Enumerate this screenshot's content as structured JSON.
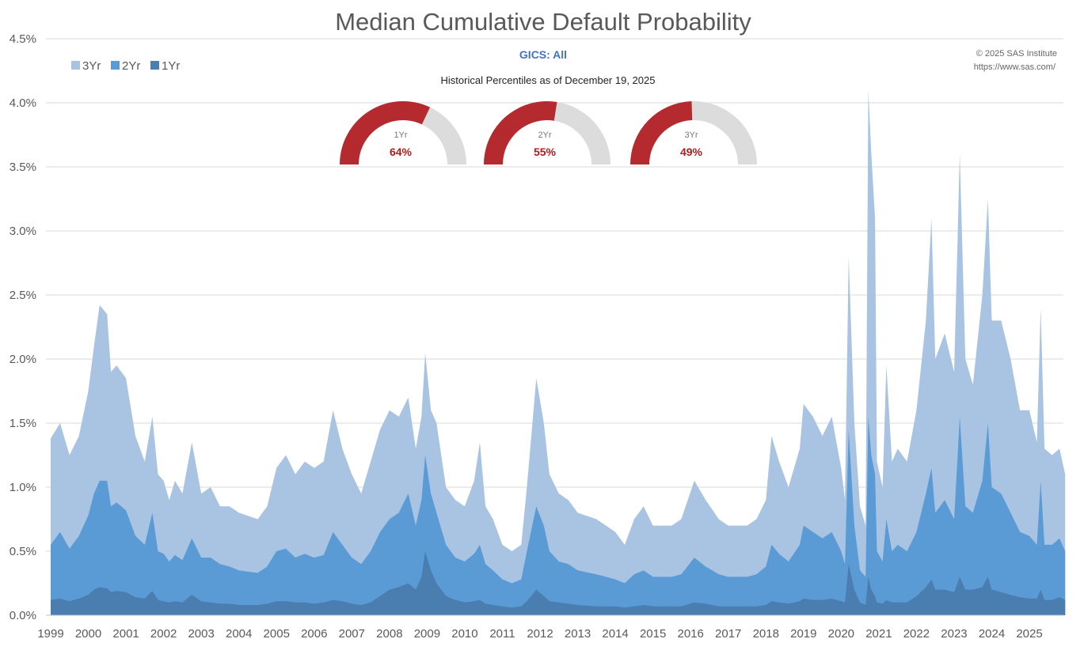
{
  "chart_data": {
    "type": "area",
    "title": "Median Cumulative Default Probability",
    "subtitle": "GICS: All",
    "annotation": "Historical Percentiles as of December 19, 2025",
    "credit": [
      "© 2025 SAS Institute",
      "https://www.sas.com/"
    ],
    "xlabel": "",
    "ylabel": "",
    "ylim": [
      0,
      4.5
    ],
    "yticks": [
      "0.0%",
      "0.5%",
      "1.0%",
      "1.5%",
      "2.0%",
      "2.5%",
      "3.0%",
      "3.5%",
      "4.0%",
      "4.5%"
    ],
    "xticks": [
      "1999",
      "2000",
      "2001",
      "2002",
      "2003",
      "2004",
      "2005",
      "2006",
      "2007",
      "2008",
      "2009",
      "2010",
      "2011",
      "2012",
      "2013",
      "2014",
      "2015",
      "2016",
      "2017",
      "2018",
      "2019",
      "2020",
      "2021",
      "2022",
      "2023",
      "2024",
      "2025"
    ],
    "grid": true,
    "legend_position": "top-left",
    "x": [
      1999.0,
      1999.25,
      1999.5,
      1999.75,
      2000.0,
      2000.15,
      2000.3,
      2000.5,
      2000.6,
      2000.75,
      2001.0,
      2001.25,
      2001.5,
      2001.7,
      2001.85,
      2002.0,
      2002.15,
      2002.3,
      2002.5,
      2002.75,
      2003.0,
      2003.25,
      2003.5,
      2003.75,
      2004.0,
      2004.5,
      2004.75,
      2005.0,
      2005.25,
      2005.5,
      2005.75,
      2006.0,
      2006.25,
      2006.5,
      2006.75,
      2007.0,
      2007.25,
      2007.5,
      2007.75,
      2008.0,
      2008.25,
      2008.5,
      2008.7,
      2008.85,
      2008.95,
      2009.1,
      2009.25,
      2009.5,
      2009.75,
      2010.0,
      2010.25,
      2010.4,
      2010.55,
      2010.75,
      2011.0,
      2011.25,
      2011.5,
      2011.65,
      2011.9,
      2012.1,
      2012.25,
      2012.5,
      2012.75,
      2013.0,
      2013.5,
      2014.0,
      2014.25,
      2014.5,
      2014.75,
      2015.0,
      2015.5,
      2015.75,
      2016.1,
      2016.4,
      2016.75,
      2017.0,
      2017.5,
      2017.75,
      2018.0,
      2018.15,
      2018.35,
      2018.6,
      2018.9,
      2019.0,
      2019.25,
      2019.5,
      2019.75,
      2020.0,
      2020.1,
      2020.2,
      2020.35,
      2020.5,
      2020.65,
      2020.72,
      2020.8,
      2020.9,
      2020.95,
      2021.1,
      2021.2,
      2021.35,
      2021.5,
      2021.75,
      2022.0,
      2022.25,
      2022.4,
      2022.5,
      2022.75,
      2023.0,
      2023.15,
      2023.3,
      2023.5,
      2023.75,
      2023.9,
      2024.0,
      2024.25,
      2024.5,
      2024.75,
      2025.0,
      2025.2,
      2025.3,
      2025.4,
      2025.6,
      2025.8,
      2025.95
    ],
    "series": [
      {
        "name": "3Yr",
        "color": "#a9c4e2",
        "values": [
          1.38,
          1.5,
          1.25,
          1.4,
          1.75,
          2.1,
          2.42,
          2.35,
          1.9,
          1.95,
          1.85,
          1.4,
          1.2,
          1.55,
          1.1,
          1.05,
          0.9,
          1.05,
          0.95,
          1.35,
          0.95,
          1.0,
          0.85,
          0.85,
          0.8,
          0.75,
          0.85,
          1.15,
          1.25,
          1.1,
          1.2,
          1.15,
          1.2,
          1.6,
          1.3,
          1.1,
          0.95,
          1.2,
          1.45,
          1.6,
          1.55,
          1.7,
          1.3,
          1.55,
          2.05,
          1.6,
          1.5,
          1.0,
          0.9,
          0.85,
          1.05,
          1.35,
          0.85,
          0.75,
          0.55,
          0.5,
          0.55,
          1.0,
          1.85,
          1.5,
          1.1,
          0.95,
          0.9,
          0.8,
          0.75,
          0.65,
          0.55,
          0.75,
          0.85,
          0.7,
          0.7,
          0.75,
          1.05,
          0.9,
          0.75,
          0.7,
          0.7,
          0.75,
          0.9,
          1.4,
          1.2,
          1.0,
          1.3,
          1.65,
          1.55,
          1.4,
          1.55,
          1.15,
          0.9,
          2.8,
          1.5,
          0.85,
          0.7,
          4.1,
          3.6,
          3.1,
          1.2,
          1.0,
          1.95,
          1.2,
          1.3,
          1.2,
          1.6,
          2.3,
          3.1,
          2.0,
          2.2,
          1.9,
          3.6,
          2.0,
          1.8,
          2.5,
          3.25,
          2.3,
          2.3,
          2.0,
          1.6,
          1.6,
          1.35,
          2.4,
          1.3,
          1.25,
          1.3,
          1.1
        ]
      },
      {
        "name": "2Yr",
        "color": "#5b9bd5",
        "values": [
          0.55,
          0.65,
          0.52,
          0.62,
          0.78,
          0.95,
          1.05,
          1.05,
          0.85,
          0.88,
          0.82,
          0.62,
          0.55,
          0.8,
          0.5,
          0.48,
          0.42,
          0.47,
          0.43,
          0.6,
          0.45,
          0.45,
          0.4,
          0.38,
          0.35,
          0.33,
          0.38,
          0.5,
          0.52,
          0.45,
          0.48,
          0.45,
          0.47,
          0.65,
          0.55,
          0.45,
          0.4,
          0.5,
          0.65,
          0.75,
          0.8,
          0.95,
          0.7,
          0.9,
          1.25,
          0.95,
          0.8,
          0.55,
          0.45,
          0.42,
          0.48,
          0.55,
          0.4,
          0.35,
          0.28,
          0.25,
          0.28,
          0.5,
          0.85,
          0.7,
          0.5,
          0.42,
          0.4,
          0.35,
          0.32,
          0.28,
          0.25,
          0.32,
          0.35,
          0.3,
          0.3,
          0.32,
          0.45,
          0.38,
          0.32,
          0.3,
          0.3,
          0.32,
          0.38,
          0.55,
          0.48,
          0.42,
          0.55,
          0.7,
          0.65,
          0.6,
          0.65,
          0.5,
          0.4,
          1.45,
          0.7,
          0.35,
          0.3,
          1.55,
          1.25,
          1.1,
          0.5,
          0.42,
          0.75,
          0.5,
          0.55,
          0.5,
          0.65,
          0.95,
          1.15,
          0.8,
          0.9,
          0.75,
          1.55,
          0.85,
          0.8,
          1.05,
          1.5,
          1.0,
          0.95,
          0.8,
          0.65,
          0.62,
          0.55,
          1.05,
          0.55,
          0.55,
          0.6,
          0.5
        ]
      },
      {
        "name": "1Yr",
        "color": "#4a7eb0",
        "values": [
          0.12,
          0.13,
          0.11,
          0.13,
          0.16,
          0.2,
          0.22,
          0.21,
          0.18,
          0.19,
          0.18,
          0.14,
          0.13,
          0.19,
          0.12,
          0.11,
          0.1,
          0.11,
          0.1,
          0.16,
          0.11,
          0.1,
          0.09,
          0.09,
          0.08,
          0.08,
          0.09,
          0.11,
          0.11,
          0.1,
          0.1,
          0.09,
          0.1,
          0.12,
          0.11,
          0.09,
          0.08,
          0.1,
          0.15,
          0.2,
          0.22,
          0.25,
          0.2,
          0.3,
          0.5,
          0.35,
          0.25,
          0.15,
          0.12,
          0.1,
          0.11,
          0.12,
          0.09,
          0.08,
          0.07,
          0.06,
          0.07,
          0.11,
          0.2,
          0.15,
          0.11,
          0.1,
          0.09,
          0.08,
          0.07,
          0.07,
          0.06,
          0.07,
          0.08,
          0.07,
          0.07,
          0.07,
          0.1,
          0.09,
          0.07,
          0.07,
          0.07,
          0.07,
          0.08,
          0.11,
          0.1,
          0.09,
          0.11,
          0.13,
          0.12,
          0.12,
          0.13,
          0.11,
          0.1,
          0.4,
          0.2,
          0.1,
          0.08,
          0.3,
          0.2,
          0.15,
          0.1,
          0.09,
          0.12,
          0.1,
          0.1,
          0.1,
          0.15,
          0.22,
          0.28,
          0.2,
          0.2,
          0.18,
          0.3,
          0.2,
          0.2,
          0.22,
          0.3,
          0.2,
          0.18,
          0.16,
          0.14,
          0.13,
          0.13,
          0.2,
          0.12,
          0.12,
          0.14,
          0.12
        ]
      }
    ],
    "gauges": [
      {
        "label": "1Yr",
        "value_text": "64%",
        "percentile": 64
      },
      {
        "label": "2Yr",
        "value_text": "55%",
        "percentile": 55
      },
      {
        "label": "3Yr",
        "value_text": "49%",
        "percentile": 49
      }
    ],
    "gauge_colors": {
      "filled": "#b42a2f",
      "empty": "#dcdcdc"
    }
  }
}
